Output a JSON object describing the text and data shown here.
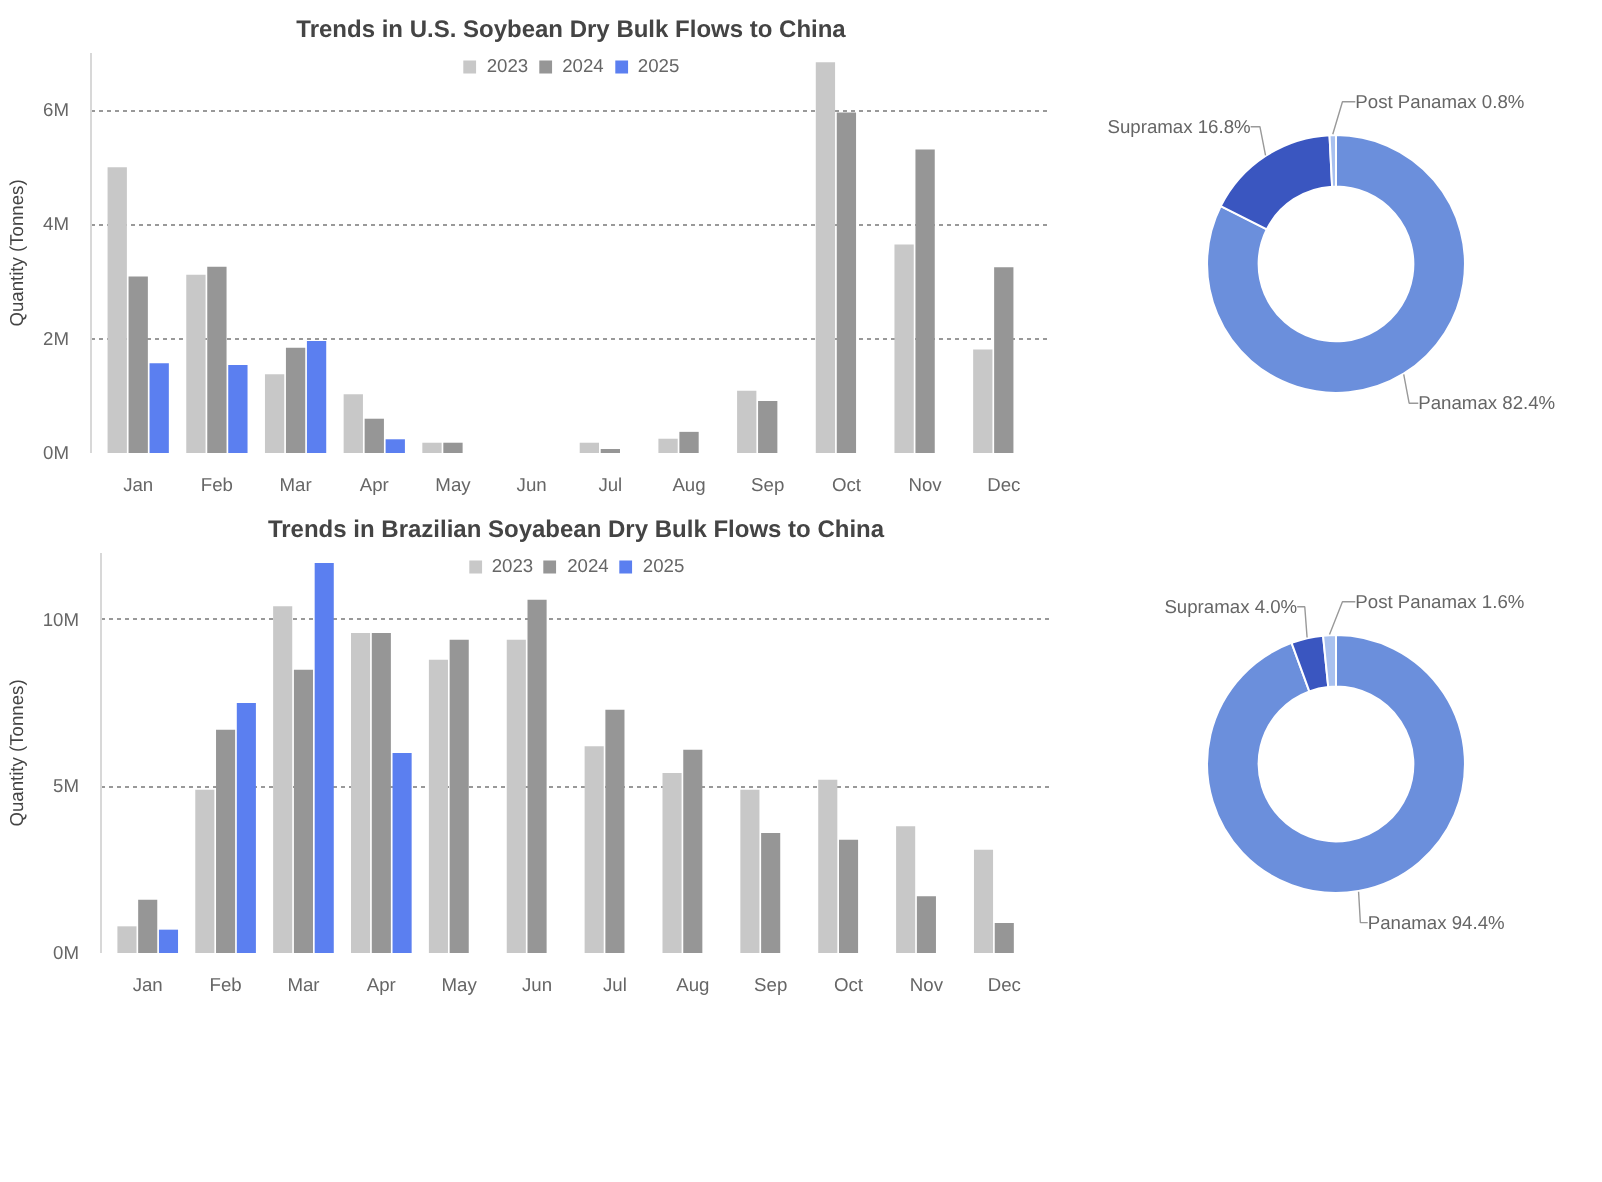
{
  "chart_data": [
    {
      "type": "bar",
      "title": "Trends in U.S. Soybean Dry Bulk Flows to China",
      "ylabel": "Quantity (Tonnes)",
      "categories": [
        "Jan",
        "Feb",
        "Mar",
        "Apr",
        "May",
        "Jun",
        "Jul",
        "Aug",
        "Sep",
        "Oct",
        "Nov",
        "Dec"
      ],
      "series": [
        {
          "name": "2023",
          "color": "#c8c8c8",
          "values": [
            5.0,
            3.12,
            1.38,
            1.03,
            0.18,
            0,
            0.18,
            0.25,
            1.09,
            6.84,
            3.65,
            1.81
          ]
        },
        {
          "name": "2024",
          "color": "#969696",
          "values": [
            3.09,
            3.26,
            1.84,
            0.6,
            0.18,
            0,
            0.07,
            0.37,
            0.91,
            5.96,
            5.31,
            3.25
          ]
        },
        {
          "name": "2025",
          "color": "#5b7ff0",
          "values": [
            1.57,
            1.54,
            1.96,
            0.24,
            null,
            null,
            null,
            null,
            null,
            null,
            null,
            null
          ]
        }
      ],
      "ylim": [
        0,
        7
      ],
      "yticks": [
        {
          "value": 0,
          "label": "0M"
        },
        {
          "value": 2,
          "label": "2M"
        },
        {
          "value": 4,
          "label": "4M"
        },
        {
          "value": 6,
          "label": "6M"
        }
      ],
      "grid": "y",
      "legend": "top"
    },
    {
      "type": "donut",
      "categories": [
        "Panamax",
        "Supramax",
        "Post Panamax"
      ],
      "values": [
        82.4,
        16.8,
        0.8
      ],
      "value_labels": [
        "82.4%",
        "16.8%",
        "0.8%"
      ],
      "colors": [
        "#6b8fdc",
        "#3a56c0",
        "#a9c1ef"
      ]
    },
    {
      "type": "bar",
      "title": "Trends in Brazilian Soyabean Dry Bulk Flows to China",
      "ylabel": "Quantity (Tonnes)",
      "categories": [
        "Jan",
        "Feb",
        "Mar",
        "Apr",
        "May",
        "Jun",
        "Jul",
        "Aug",
        "Sep",
        "Oct",
        "Nov",
        "Dec"
      ],
      "series": [
        {
          "name": "2023",
          "color": "#c8c8c8",
          "values": [
            0.8,
            4.9,
            10.4,
            9.6,
            8.8,
            9.4,
            6.2,
            5.4,
            4.9,
            5.2,
            3.8,
            3.1
          ]
        },
        {
          "name": "2024",
          "color": "#969696",
          "values": [
            1.6,
            6.7,
            8.5,
            9.6,
            9.4,
            10.6,
            7.3,
            6.1,
            3.6,
            3.4,
            1.7,
            0.9
          ]
        },
        {
          "name": "2025",
          "color": "#5b7ff0",
          "values": [
            0.7,
            7.5,
            11.7,
            6.0,
            null,
            null,
            null,
            null,
            null,
            null,
            null,
            null
          ]
        }
      ],
      "ylim": [
        0,
        12
      ],
      "yticks": [
        {
          "value": 0,
          "label": "0M"
        },
        {
          "value": 5,
          "label": "5M"
        },
        {
          "value": 10,
          "label": "10M"
        }
      ],
      "grid": "y",
      "legend": "top"
    },
    {
      "type": "donut",
      "categories": [
        "Panamax",
        "Supramax",
        "Post Panamax"
      ],
      "values": [
        94.4,
        4.0,
        1.6
      ],
      "value_labels": [
        "94.4%",
        "4.0%",
        "1.6%"
      ],
      "colors": [
        "#6b8fdc",
        "#3a56c0",
        "#a9c1ef"
      ]
    }
  ]
}
